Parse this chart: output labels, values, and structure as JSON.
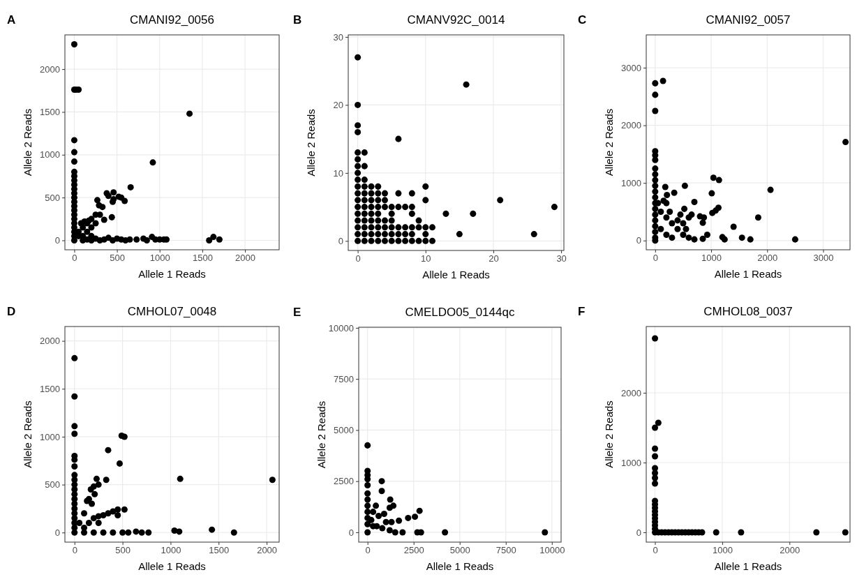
{
  "chart_data": [
    {
      "type": "scatter",
      "title": "CMANI92_0056",
      "xlabel": "Allele 1 Reads",
      "ylabel": "Allele 2 Reads",
      "annotations": [
        "A"
      ],
      "color": "#000000",
      "marker": "circle",
      "grid": true,
      "xlim": [
        -110,
        2400
      ],
      "ylim": [
        -110,
        2400
      ],
      "xticks": [
        0,
        500,
        1000,
        1500,
        2000
      ],
      "yticks": [
        0,
        500,
        1000,
        1500,
        2000
      ],
      "x": [
        0,
        0,
        0,
        0,
        0,
        0,
        0,
        0,
        0,
        0,
        0,
        0,
        0,
        0,
        0,
        0,
        0,
        0,
        0,
        0,
        0,
        0,
        20,
        50,
        50,
        100,
        100,
        150,
        150,
        200,
        200,
        250,
        300,
        250,
        80,
        120,
        170,
        200,
        50,
        270,
        290,
        330,
        380,
        400,
        460,
        450,
        460,
        550,
        590,
        520,
        660,
        440,
        350,
        920,
        1350,
        100,
        150,
        200,
        250,
        300,
        350,
        400,
        450,
        500,
        550,
        600,
        650,
        730,
        810,
        850,
        910,
        950,
        1000,
        1050,
        1080,
        1580,
        1630,
        1700
      ],
      "values": [
        2290,
        1760,
        1170,
        1030,
        920,
        800,
        750,
        700,
        650,
        600,
        550,
        500,
        450,
        400,
        350,
        300,
        250,
        200,
        150,
        100,
        50,
        0,
        1760,
        1760,
        100,
        50,
        150,
        100,
        200,
        150,
        250,
        300,
        300,
        200,
        200,
        220,
        230,
        50,
        50,
        470,
        410,
        390,
        550,
        520,
        560,
        450,
        480,
        500,
        460,
        510,
        620,
        270,
        240,
        910,
        1480,
        0,
        10,
        0,
        20,
        0,
        10,
        30,
        0,
        20,
        10,
        0,
        10,
        10,
        20,
        0,
        40,
        10,
        10,
        10,
        10,
        0,
        40,
        10
      ]
    },
    {
      "type": "scatter",
      "title": "CMANV92C_0014",
      "xlabel": "Allele 1 Reads",
      "ylabel": "Allele 2 Reads",
      "annotations": [
        "B"
      ],
      "color": "#000000",
      "marker": "circle",
      "grid": true,
      "xlim": [
        -1.4,
        30.4
      ],
      "ylim": [
        -1.4,
        30.3
      ],
      "xticks": [
        0,
        10,
        20,
        30
      ],
      "yticks": [
        0,
        10,
        20,
        30
      ],
      "x": [
        0,
        1,
        2,
        3,
        4,
        5,
        6,
        7,
        8,
        9,
        10,
        11,
        0,
        1,
        2,
        3,
        4,
        5,
        6,
        7,
        8,
        10,
        0,
        1,
        2,
        3,
        4,
        5,
        6,
        7,
        8,
        9,
        10,
        11,
        0,
        1,
        2,
        3,
        4,
        5,
        9,
        0,
        1,
        2,
        3,
        5,
        8,
        0,
        1,
        2,
        3,
        4,
        5,
        6,
        7,
        8,
        0,
        1,
        2,
        3,
        4,
        10,
        0,
        1,
        2,
        3,
        4,
        6,
        8,
        0,
        1,
        2,
        3,
        10,
        0,
        1,
        0,
        0,
        1,
        0,
        0,
        1,
        6,
        0,
        0,
        0,
        0,
        13,
        15,
        16,
        17,
        21,
        26,
        29
      ],
      "values": [
        0,
        0,
        0,
        0,
        0,
        0,
        0,
        0,
        0,
        0,
        0,
        0,
        1,
        1,
        1,
        1,
        1,
        1,
        1,
        1,
        1,
        1,
        2,
        2,
        2,
        2,
        2,
        2,
        2,
        2,
        2,
        2,
        2,
        2,
        3,
        3,
        3,
        3,
        3,
        3,
        3,
        4,
        4,
        4,
        4,
        4,
        4,
        5,
        5,
        5,
        5,
        5,
        5,
        5,
        5,
        5,
        6,
        6,
        6,
        6,
        6,
        6,
        7,
        7,
        7,
        7,
        7,
        7,
        7,
        8,
        8,
        8,
        8,
        8,
        9,
        9,
        10,
        11,
        11,
        12,
        13,
        13,
        15,
        16,
        17,
        20,
        27,
        4,
        1,
        23,
        4,
        6,
        1,
        5
      ]
    },
    {
      "type": "scatter",
      "title": "CMANI92_0057",
      "xlabel": "Allele 1 Reads",
      "ylabel": "Allele 2 Reads",
      "annotations": [
        "C"
      ],
      "color": "#000000",
      "marker": "circle",
      "grid": true,
      "xlim": [
        -160,
        3480
      ],
      "ylim": [
        -160,
        3570
      ],
      "xticks": [
        0,
        1000,
        2000,
        3000
      ],
      "yticks": [
        0,
        1000,
        2000,
        3000
      ],
      "x": [
        0,
        0,
        0,
        0,
        0,
        0,
        0,
        0,
        0,
        0,
        0,
        0,
        0,
        0,
        0,
        0,
        0,
        0,
        0,
        0,
        140,
        100,
        200,
        300,
        400,
        500,
        600,
        700,
        100,
        200,
        300,
        400,
        450,
        500,
        600,
        550,
        200,
        150,
        260,
        50,
        180,
        210,
        340,
        530,
        700,
        520,
        800,
        870,
        850,
        650,
        930,
        850,
        1010,
        1040,
        1140,
        1020,
        1080,
        1130,
        1200,
        1240,
        1400,
        1550,
        1700,
        1840,
        2060,
        2500,
        3400
      ],
      "values": [
        2730,
        2530,
        2250,
        1550,
        1480,
        1400,
        1250,
        1150,
        1050,
        950,
        850,
        750,
        650,
        550,
        450,
        350,
        250,
        150,
        50,
        0,
        2770,
        500,
        400,
        300,
        200,
        100,
        50,
        20,
        200,
        100,
        50,
        350,
        450,
        300,
        400,
        200,
        650,
        690,
        500,
        650,
        930,
        790,
        830,
        950,
        670,
        550,
        420,
        400,
        310,
        450,
        100,
        30,
        820,
        1090,
        1050,
        480,
        520,
        570,
        60,
        20,
        240,
        50,
        20,
        400,
        880,
        20,
        1710
      ]
    },
    {
      "type": "scatter",
      "title": "CMHOL07_0048",
      "xlabel": "Allele 1 Reads",
      "ylabel": "Allele 2 Reads",
      "annotations": [
        "D"
      ],
      "color": "#000000",
      "marker": "circle",
      "grid": true,
      "xlim": [
        -100,
        2130
      ],
      "ylim": [
        -100,
        2150
      ],
      "xticks": [
        0,
        500,
        1000,
        1500,
        2000
      ],
      "yticks": [
        0,
        500,
        1000,
        1500,
        2000
      ],
      "x": [
        0,
        0,
        0,
        0,
        0,
        0,
        0,
        0,
        0,
        0,
        0,
        0,
        0,
        0,
        0,
        0,
        0,
        0,
        0,
        0,
        50,
        100,
        130,
        150,
        170,
        200,
        230,
        250,
        210,
        180,
        330,
        350,
        470,
        490,
        520,
        100,
        150,
        200,
        250,
        300,
        350,
        400,
        450,
        520,
        450,
        250,
        1100,
        2060,
        100,
        200,
        300,
        400,
        500,
        560,
        640,
        700,
        770,
        1040,
        1090,
        1430,
        1660
      ],
      "values": [
        1820,
        1420,
        1110,
        1030,
        800,
        760,
        690,
        600,
        550,
        500,
        450,
        400,
        350,
        300,
        250,
        200,
        150,
        100,
        50,
        0,
        100,
        200,
        330,
        350,
        450,
        480,
        560,
        500,
        400,
        300,
        550,
        860,
        720,
        1010,
        1000,
        50,
        100,
        150,
        170,
        180,
        200,
        220,
        240,
        240,
        180,
        100,
        560,
        550,
        0,
        0,
        0,
        0,
        0,
        0,
        10,
        0,
        0,
        20,
        10,
        30,
        0
      ]
    },
    {
      "type": "scatter",
      "title": "CMELDO05_0144qc",
      "xlabel": "Allele 1 Reads",
      "ylabel": "Allele 2 Reads",
      "annotations": [
        "E"
      ],
      "color": "#000000",
      "marker": "circle",
      "grid": true,
      "xlim": [
        -480,
        10500
      ],
      "ylim": [
        -480,
        10030
      ],
      "xticks": [
        0,
        2500,
        5000,
        7500,
        10000
      ],
      "yticks": [
        0,
        2500,
        5000,
        7500,
        10000
      ],
      "x": [
        0,
        0,
        0,
        0,
        0,
        0,
        0,
        0,
        0,
        0,
        0,
        0,
        770,
        770,
        1230,
        1400,
        1200,
        450,
        300,
        600,
        900,
        1000,
        1300,
        1700,
        2200,
        2570,
        2820,
        500,
        800,
        1200,
        1500,
        1900,
        2700,
        2900,
        4200,
        9620,
        300,
        200
      ],
      "values": [
        4250,
        3000,
        2800,
        2600,
        2300,
        1900,
        1600,
        1300,
        1000,
        700,
        400,
        0,
        2500,
        2020,
        1600,
        1300,
        1200,
        1300,
        1000,
        800,
        900,
        500,
        500,
        570,
        700,
        760,
        1050,
        300,
        200,
        100,
        0,
        0,
        0,
        0,
        0,
        0,
        300,
        600
      ]
    },
    {
      "type": "scatter",
      "title": "CMHOL08_0037",
      "xlabel": "Allele 1 Reads",
      "ylabel": "Allele 2 Reads",
      "annotations": [
        "F"
      ],
      "color": "#000000",
      "marker": "circle",
      "grid": true,
      "xlim": [
        -130,
        2900
      ],
      "ylim": [
        -140,
        2950
      ],
      "xticks": [
        0,
        1000,
        2000
      ],
      "yticks": [
        0,
        1000,
        2000
      ],
      "x": [
        0,
        0,
        0,
        0,
        0,
        0,
        0,
        0,
        0,
        0,
        0,
        0,
        0,
        0,
        0,
        0,
        0,
        0,
        50,
        50,
        100,
        150,
        200,
        250,
        300,
        350,
        400,
        450,
        500,
        550,
        600,
        650,
        700,
        910,
        1280,
        2400,
        2830
      ],
      "values": [
        2780,
        1500,
        1200,
        1090,
        920,
        850,
        780,
        700,
        450,
        400,
        350,
        300,
        250,
        200,
        150,
        100,
        50,
        0,
        1570,
        0,
        0,
        0,
        0,
        0,
        0,
        0,
        0,
        0,
        0,
        0,
        0,
        0,
        0,
        0,
        0,
        0,
        0
      ]
    }
  ]
}
